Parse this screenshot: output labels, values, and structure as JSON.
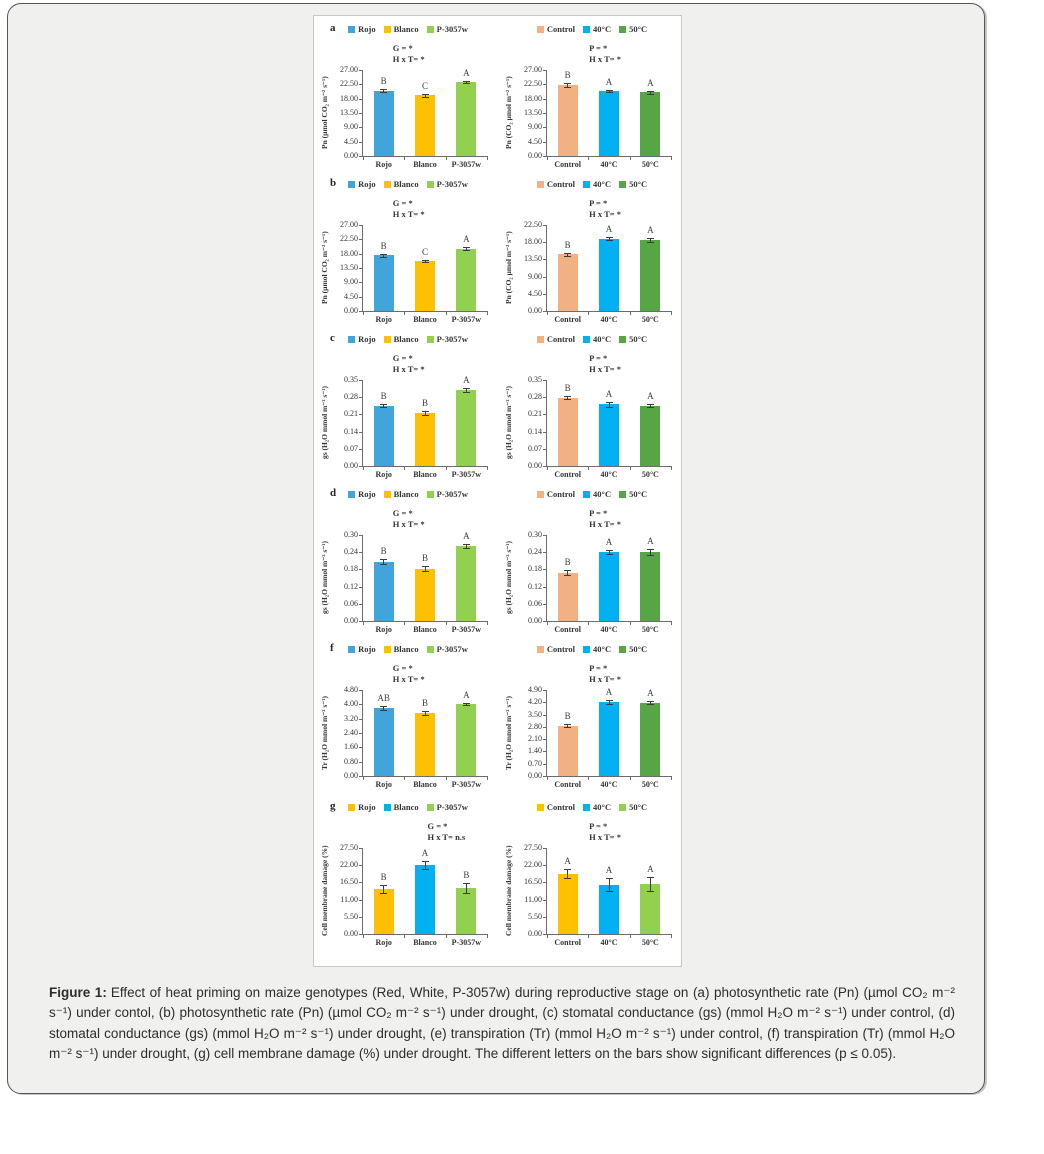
{
  "palette": {
    "rojo_blue": "#41A5DC",
    "blanco_yellow": "#FFC000",
    "p3057w_green": "#92D050",
    "control_salmon": "#F2B183",
    "temp40_blue": "#00B0F0",
    "temp50_green": "#56A546"
  },
  "caption": {
    "label": "Figure 1:",
    "text": "Effect of heat priming on maize genotypes (Red, White, P-3057w) during reproductive stage on (a) photosynthetic rate (Pn) (µmol CO₂ m⁻² s⁻¹) under contol, (b) photosynthetic rate (Pn) (µmol CO₂ m⁻² s⁻¹) under drought, (c) stomatal conductance (gs) (mmol H₂O m⁻² s⁻¹) under control, (d) stomatal conductance (gs) (mmol H₂O m⁻² s⁻¹) under drought, (e) transpiration (Tr) (mmol H₂O m⁻² s⁻¹) under control, (f) transpiration (Tr) (mmol H₂O m⁻² s⁻¹) under drought, (g) cell membrane damage (%) under drought. The different letters on the bars show significant differences (p ≤ 0.05)."
  },
  "chart_data": [
    {
      "id": "a-left",
      "type": "bar",
      "row": 0,
      "side": "left",
      "panel": "a",
      "ylabel": "Pn (µmol CO₂ m⁻² s⁻¹)",
      "ymax": 27,
      "yticks": [
        "0.00",
        "4.50",
        "9.00",
        "13.50",
        "18.00",
        "22.50",
        "27.00"
      ],
      "categories": [
        "Rojo",
        "Blanco",
        "P-3057w"
      ],
      "values": [
        20.5,
        19.1,
        23.2
      ],
      "errors": [
        0.4,
        0.5,
        0.4
      ],
      "letters": [
        "B",
        "C",
        "A"
      ],
      "colors": [
        "#41A5DC",
        "#FFC000",
        "#92D050"
      ],
      "stats": [
        "G = *",
        "H x T= *"
      ],
      "stats_x": 24
    },
    {
      "id": "a-right",
      "type": "bar",
      "row": 0,
      "side": "right",
      "panel": "",
      "ylabel": "Pn (CO₂ µmol m⁻² s⁻¹)",
      "ymax": 27,
      "yticks": [
        "0.00",
        "4.50",
        "9.00",
        "13.50",
        "18.00",
        "22.50",
        "27.00"
      ],
      "categories": [
        "Control",
        "40°C",
        "50°C"
      ],
      "values": [
        22.3,
        20.4,
        20.0
      ],
      "errors": [
        0.5,
        0.3,
        0.5
      ],
      "letters": [
        "B",
        "A",
        "A"
      ],
      "colors": [
        "#F2B183",
        "#00B0F0",
        "#56A546"
      ],
      "stats": [
        "P = *",
        "H x T= *"
      ],
      "stats_x": 34
    },
    {
      "id": "b-left",
      "type": "bar",
      "row": 1,
      "side": "left",
      "panel": "b",
      "ylabel": "Pn (µmol CO₂ m⁻² s⁻¹)",
      "ymax": 27,
      "yticks": [
        "0.00",
        "4.50",
        "9.00",
        "13.50",
        "18.00",
        "22.50",
        "27.00"
      ],
      "categories": [
        "Rojo",
        "Blanco",
        "P-3057w"
      ],
      "values": [
        17.5,
        15.6,
        19.6
      ],
      "errors": [
        0.4,
        0.3,
        0.5
      ],
      "letters": [
        "B",
        "C",
        "A"
      ],
      "colors": [
        "#41A5DC",
        "#FFC000",
        "#92D050"
      ],
      "stats": [
        "G = *",
        "H x T= *"
      ],
      "stats_x": 24
    },
    {
      "id": "b-right",
      "type": "bar",
      "row": 1,
      "side": "right",
      "panel": "",
      "ylabel": "Pn (CO₂ µmol m⁻² s⁻¹)",
      "ymax": 22.5,
      "yticks": [
        "0.00",
        "4.50",
        "9.00",
        "13.50",
        "18.00",
        "22.50"
      ],
      "categories": [
        "Control",
        "40°C",
        "50°C"
      ],
      "values": [
        14.8,
        18.9,
        18.6
      ],
      "errors": [
        0.4,
        0.4,
        0.5
      ],
      "letters": [
        "B",
        "A",
        "A"
      ],
      "colors": [
        "#F2B183",
        "#00B0F0",
        "#56A546"
      ],
      "stats": [
        "P = *",
        "H x T= *"
      ],
      "stats_x": 34
    },
    {
      "id": "c-left",
      "type": "bar",
      "row": 2,
      "side": "left",
      "panel": "c",
      "ylabel": "gs (H₂O mmol m⁻² s⁻¹)",
      "ymax": 0.35,
      "yticks": [
        "0.00",
        "0.07",
        "0.14",
        "0.21",
        "0.28",
        "0.35"
      ],
      "categories": [
        "Rojo",
        "Blanco",
        "P-3057w"
      ],
      "values": [
        0.245,
        0.215,
        0.31
      ],
      "errors": [
        0.006,
        0.009,
        0.008
      ],
      "letters": [
        "B",
        "B",
        "A"
      ],
      "colors": [
        "#41A5DC",
        "#FFC000",
        "#92D050"
      ],
      "stats": [
        "G = *",
        "H x T= *"
      ],
      "stats_x": 24
    },
    {
      "id": "c-right",
      "type": "bar",
      "row": 2,
      "side": "right",
      "panel": "",
      "ylabel": "gs (H₂O mmol m⁻² s⁻¹)",
      "ymax": 0.35,
      "yticks": [
        "0.00",
        "0.07",
        "0.14",
        "0.21",
        "0.28",
        "0.35"
      ],
      "categories": [
        "Control",
        "40°C",
        "50°C"
      ],
      "values": [
        0.278,
        0.251,
        0.246
      ],
      "errors": [
        0.007,
        0.009,
        0.007
      ],
      "letters": [
        "B",
        "A",
        "A"
      ],
      "colors": [
        "#F2B183",
        "#00B0F0",
        "#56A546"
      ],
      "stats": [
        "P = *",
        "H x T= *"
      ],
      "stats_x": 34
    },
    {
      "id": "d-left",
      "type": "bar",
      "row": 3,
      "side": "left",
      "panel": "d",
      "ylabel": "gs (H₂O mmol m⁻² s⁻¹)",
      "ymax": 0.3,
      "yticks": [
        "0.00",
        "0.06",
        "0.12",
        "0.18",
        "0.24",
        "0.30"
      ],
      "categories": [
        "Rojo",
        "Blanco",
        "P-3057w"
      ],
      "values": [
        0.207,
        0.182,
        0.26
      ],
      "errors": [
        0.009,
        0.009,
        0.007
      ],
      "letters": [
        "B",
        "B",
        "A"
      ],
      "colors": [
        "#41A5DC",
        "#FFC000",
        "#92D050"
      ],
      "stats": [
        "G = *",
        "H x T= *"
      ],
      "stats_x": 24
    },
    {
      "id": "d-right",
      "type": "bar",
      "row": 3,
      "side": "right",
      "panel": "",
      "ylabel": "gs (H₂O mmol m⁻² s⁻¹)",
      "ymax": 0.3,
      "yticks": [
        "0.00",
        "0.06",
        "0.12",
        "0.18",
        "0.24",
        "0.30"
      ],
      "categories": [
        "Control",
        "40°C",
        "50°C"
      ],
      "values": [
        0.169,
        0.24,
        0.24
      ],
      "errors": [
        0.009,
        0.008,
        0.01
      ],
      "letters": [
        "B",
        "A",
        "A"
      ],
      "colors": [
        "#F2B183",
        "#00B0F0",
        "#56A546"
      ],
      "stats": [
        "P = *",
        "H x T= *"
      ],
      "stats_x": 34
    },
    {
      "id": "f-left",
      "type": "bar",
      "row": 4,
      "side": "left",
      "panel": "f",
      "ylabel": "Tr (H₂O mmol m⁻² s⁻¹)",
      "ymax": 4.8,
      "yticks": [
        "0.00",
        "0.80",
        "1.60",
        "2.40",
        "3.20",
        "4.00",
        "4.80"
      ],
      "categories": [
        "Rojo",
        "Blanco",
        "P-3057w"
      ],
      "values": [
        3.78,
        3.52,
        4.02
      ],
      "errors": [
        0.12,
        0.1,
        0.08
      ],
      "letters": [
        "AB",
        "B",
        "A"
      ],
      "colors": [
        "#41A5DC",
        "#FFC000",
        "#92D050"
      ],
      "stats": [
        "G = *",
        "H x T= *"
      ],
      "stats_x": 24
    },
    {
      "id": "f-right",
      "type": "bar",
      "row": 4,
      "side": "right",
      "panel": "",
      "ylabel": "Tr (H₂O mmol m⁻² s⁻¹)",
      "ymax": 4.9,
      "yticks": [
        "0.00",
        "0.70",
        "1.40",
        "2.10",
        "2.80",
        "3.50",
        "4.20",
        "4.90"
      ],
      "categories": [
        "Control",
        "40°C",
        "50°C"
      ],
      "values": [
        2.87,
        4.22,
        4.18
      ],
      "errors": [
        0.08,
        0.12,
        0.08
      ],
      "letters": [
        "B",
        "A",
        "A"
      ],
      "colors": [
        "#F2B183",
        "#00B0F0",
        "#56A546"
      ],
      "stats": [
        "P = *",
        "H x T= *"
      ],
      "stats_x": 34
    },
    {
      "id": "g-left",
      "type": "bar",
      "row": 5,
      "side": "left",
      "panel": "g",
      "ylabel": "Cell membrane damage (%)",
      "ymax": 27.5,
      "yticks": [
        "0.00",
        "5.50",
        "11.00",
        "16.50",
        "22.00",
        "27.50"
      ],
      "categories": [
        "Rojo",
        "Blanco",
        "P-3057w"
      ],
      "values": [
        14.4,
        22.1,
        14.8
      ],
      "errors": [
        1.2,
        1.3,
        1.6
      ],
      "letters": [
        "B",
        "A",
        "B"
      ],
      "colors": [
        "#FFC000",
        "#00B0F0",
        "#92D050"
      ],
      "stats": [
        "G = *",
        "H x T= n.s"
      ],
      "stats_x": 52
    },
    {
      "id": "g-right",
      "type": "bar",
      "row": 5,
      "side": "right",
      "panel": "",
      "ylabel": "Cell membrane damage (%)",
      "ymax": 27.5,
      "yticks": [
        "0.00",
        "5.50",
        "11.00",
        "16.50",
        "22.00",
        "27.50"
      ],
      "categories": [
        "Control",
        "40°C",
        "50°C"
      ],
      "values": [
        19.3,
        15.8,
        16.0
      ],
      "errors": [
        1.5,
        2.0,
        2.2
      ],
      "letters": [
        "A",
        "A",
        "A"
      ],
      "colors": [
        "#FFC000",
        "#00B0F0",
        "#92D050"
      ],
      "stats": [
        "P = *",
        "H x T= *"
      ],
      "stats_x": 34
    }
  ]
}
